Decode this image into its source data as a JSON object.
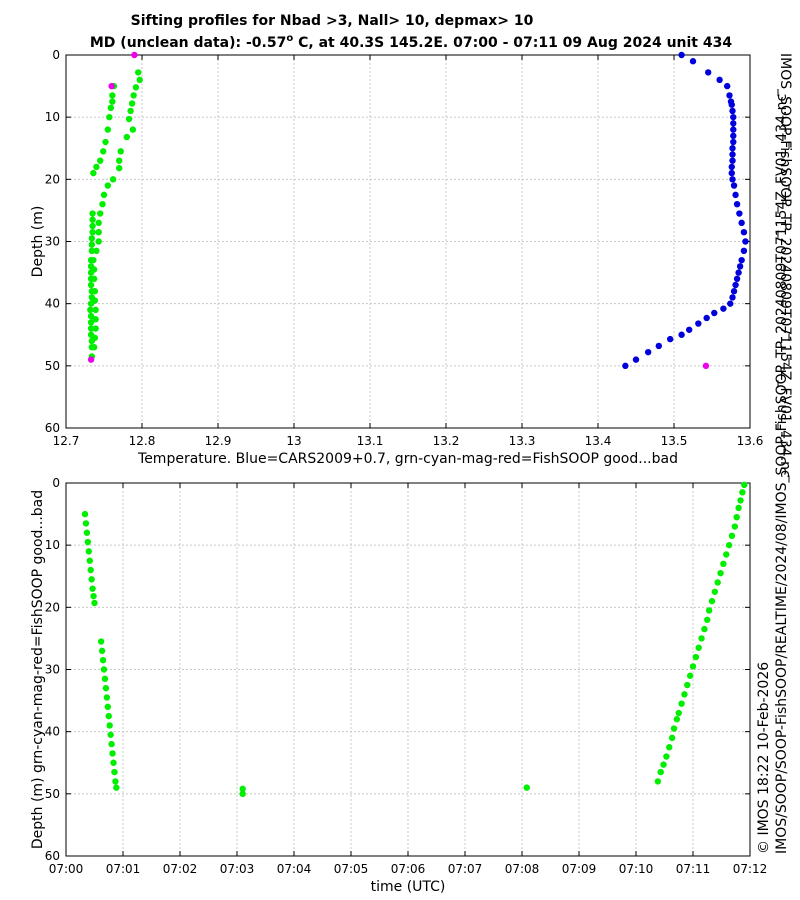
{
  "title_line1": "Sifting profiles for Nbad >3, Nall> 10, depmax> 10",
  "title_line2_prefix": "MD (unclean data): -0.57",
  "title_line2_sup": "o",
  "title_line2_suffix": " C, at 40.3S 145.2E. 07:00 - 07:11 09 Aug 2024 unit 434",
  "side_text_right": "IMOS_SOOP-FishSOOP_TP_20240809T071154Z_FV01_434.nc",
  "side_text_bottom_1": "© IMOS 18:22 10-Feb-2026",
  "side_text_bottom_2": "IMOS/SOOP/SOOP-FishSOOP/REALTIME/2024/08/IMOS_SOOP-FishSOOP_TP_20240809T071154Z_FV01_434.nc",
  "colors": {
    "green": "#00ee00",
    "blue": "#0000dd",
    "magenta": "#ee00ee",
    "grid": "#c8c8c8"
  },
  "chart_data": [
    {
      "type": "scatter",
      "xlabel": "Temperature. Blue=CARS2009+0.7, grn-cyan-mag-red=FishSOOP good...bad",
      "ylabel": "Depth (m)",
      "xlim": [
        12.7,
        13.6
      ],
      "ylim": [
        60,
        0
      ],
      "y_inverted": true,
      "grid": true,
      "xticks": [
        "12.7",
        "12.8",
        "12.9",
        "13",
        "13.1",
        "13.2",
        "13.3",
        "13.4",
        "13.5",
        "13.6"
      ],
      "yticks": [
        "0",
        "10",
        "20",
        "30",
        "40",
        "50",
        "60"
      ],
      "series": [
        {
          "color": "#0000dd",
          "points": [
            [
              13.51,
              0
            ],
            [
              13.525,
              1
            ],
            [
              13.545,
              2.8
            ],
            [
              13.56,
              4
            ],
            [
              13.57,
              5
            ],
            [
              13.573,
              6.5
            ],
            [
              13.575,
              7.5
            ],
            [
              13.576,
              8
            ],
            [
              13.577,
              9
            ],
            [
              13.578,
              10
            ],
            [
              13.578,
              11
            ],
            [
              13.578,
              12
            ],
            [
              13.578,
              13
            ],
            [
              13.578,
              14
            ],
            [
              13.577,
              15
            ],
            [
              13.577,
              16
            ],
            [
              13.577,
              17
            ],
            [
              13.576,
              18
            ],
            [
              13.576,
              19
            ],
            [
              13.577,
              20
            ],
            [
              13.579,
              21
            ],
            [
              13.581,
              22.5
            ],
            [
              13.583,
              24
            ],
            [
              13.586,
              25.5
            ],
            [
              13.589,
              27
            ],
            [
              13.592,
              28.5
            ],
            [
              13.594,
              30
            ],
            [
              13.592,
              31.5
            ],
            [
              13.589,
              33
            ],
            [
              13.587,
              34
            ],
            [
              13.585,
              35
            ],
            [
              13.583,
              36
            ],
            [
              13.581,
              37
            ],
            [
              13.579,
              38
            ],
            [
              13.577,
              39
            ],
            [
              13.574,
              40
            ],
            [
              13.565,
              40.8
            ],
            [
              13.553,
              41.5
            ],
            [
              13.543,
              42.3
            ],
            [
              13.532,
              43.2
            ],
            [
              13.52,
              44.2
            ],
            [
              13.51,
              45
            ],
            [
              13.495,
              45.7
            ],
            [
              13.48,
              46.8
            ],
            [
              13.466,
              47.8
            ],
            [
              13.45,
              49
            ],
            [
              13.436,
              50
            ]
          ]
        },
        {
          "color": "#00ee00",
          "points": [
            [
              12.795,
              2.8
            ],
            [
              12.797,
              4
            ],
            [
              12.792,
              5.2
            ],
            [
              12.789,
              6.5
            ],
            [
              12.787,
              7.8
            ],
            [
              12.785,
              9
            ],
            [
              12.783,
              10.3
            ],
            [
              12.788,
              12
            ],
            [
              12.78,
              13.2
            ],
            [
              12.772,
              15.5
            ],
            [
              12.77,
              17
            ],
            [
              12.77,
              18.2
            ],
            [
              12.762,
              20
            ],
            [
              12.755,
              21
            ],
            [
              12.75,
              22.5
            ],
            [
              12.748,
              24
            ],
            [
              12.745,
              25.5
            ],
            [
              12.743,
              27
            ],
            [
              12.743,
              28.5
            ],
            [
              12.743,
              30
            ],
            [
              12.74,
              31.5
            ],
            [
              12.763,
              5
            ],
            [
              12.761,
              6.5
            ],
            [
              12.761,
              7.5
            ],
            [
              12.759,
              8.5
            ],
            [
              12.757,
              10
            ],
            [
              12.755,
              12
            ],
            [
              12.752,
              14
            ],
            [
              12.749,
              15.5
            ],
            [
              12.745,
              17
            ],
            [
              12.74,
              18
            ],
            [
              12.736,
              19
            ],
            [
              12.735,
              25.5
            ],
            [
              12.735,
              26.5
            ],
            [
              12.735,
              27.5
            ],
            [
              12.735,
              28.5
            ],
            [
              12.734,
              29.5
            ],
            [
              12.734,
              30.5
            ],
            [
              12.734,
              31.5
            ],
            [
              12.733,
              33
            ],
            [
              12.733,
              34
            ],
            [
              12.733,
              35
            ],
            [
              12.733,
              36
            ],
            [
              12.733,
              37
            ],
            [
              12.734,
              38
            ],
            [
              12.734,
              39
            ],
            [
              12.733,
              40
            ],
            [
              12.732,
              41
            ],
            [
              12.733,
              42
            ],
            [
              12.733,
              43
            ],
            [
              12.733,
              44
            ],
            [
              12.733,
              45
            ],
            [
              12.734,
              46
            ],
            [
              12.734,
              47
            ],
            [
              12.734,
              48.5
            ],
            [
              12.736,
              33
            ],
            [
              12.737,
              34.5
            ],
            [
              12.737,
              36
            ],
            [
              12.738,
              38
            ],
            [
              12.738,
              39.5
            ],
            [
              12.739,
              41
            ],
            [
              12.739,
              42.5
            ],
            [
              12.739,
              44
            ],
            [
              12.738,
              45.5
            ],
            [
              12.737,
              47
            ]
          ]
        },
        {
          "color": "#ee00ee",
          "points": [
            [
              12.79,
              0
            ],
            [
              12.76,
              5
            ],
            [
              12.733,
              49
            ],
            [
              13.542,
              50
            ]
          ]
        }
      ]
    },
    {
      "type": "scatter",
      "xlabel": "time (UTC)",
      "ylabel": "Depth (m) grn-cyan-mag-red=FishSOOP good...bad",
      "xlim": [
        "07:00",
        "07:12"
      ],
      "ylim": [
        60,
        0
      ],
      "y_inverted": true,
      "grid": true,
      "xticks": [
        "07:00",
        "07:01",
        "07:02",
        "07:03",
        "07:04",
        "07:05",
        "07:06",
        "07:07",
        "07:08",
        "07:09",
        "07:10",
        "07:11",
        "07:12"
      ],
      "yticks": [
        "0",
        "10",
        "20",
        "30",
        "40",
        "50",
        "60"
      ],
      "series": [
        {
          "color": "#00ee00",
          "points": [
            [
              "07:00:20",
              5
            ],
            [
              "07:00:21",
              6.5
            ],
            [
              "07:00:22",
              8
            ],
            [
              "07:00:23",
              9.5
            ],
            [
              "07:00:24",
              11
            ],
            [
              "07:00:25",
              12.5
            ],
            [
              "07:00:26",
              14
            ],
            [
              "07:00:27",
              15.5
            ],
            [
              "07:00:28",
              17
            ],
            [
              "07:00:29",
              18.2
            ],
            [
              "07:00:30",
              19.3
            ],
            [
              "07:00:37",
              25.5
            ],
            [
              "07:00:38",
              27
            ],
            [
              "07:00:39",
              28.5
            ],
            [
              "07:00:40",
              30
            ],
            [
              "07:00:41",
              31.5
            ],
            [
              "07:00:42",
              33
            ],
            [
              "07:00:43",
              34.5
            ],
            [
              "07:00:44",
              36
            ],
            [
              "07:00:45",
              37.5
            ],
            [
              "07:00:46",
              39
            ],
            [
              "07:00:47",
              40.5
            ],
            [
              "07:00:48",
              42
            ],
            [
              "07:00:49",
              43.5
            ],
            [
              "07:00:50",
              45
            ],
            [
              "07:00:51",
              46.5
            ],
            [
              "07:00:52",
              48
            ],
            [
              "07:00:53",
              49
            ],
            [
              "07:03:06",
              49.2
            ],
            [
              "07:03:06",
              50
            ],
            [
              "07:08:05",
              49
            ],
            [
              "07:10:23",
              48
            ],
            [
              "07:10:26",
              46.5
            ],
            [
              "07:10:29",
              45.3
            ],
            [
              "07:10:32",
              44
            ],
            [
              "07:10:35",
              42.5
            ],
            [
              "07:10:38",
              41
            ],
            [
              "07:10:40",
              39.5
            ],
            [
              "07:10:43",
              38
            ],
            [
              "07:10:45",
              37
            ],
            [
              "07:10:48",
              35.5
            ],
            [
              "07:10:51",
              34
            ],
            [
              "07:10:54",
              32.5
            ],
            [
              "07:10:57",
              31
            ],
            [
              "07:11:00",
              29.5
            ],
            [
              "07:11:03",
              28
            ],
            [
              "07:11:06",
              26.5
            ],
            [
              "07:11:09",
              25
            ],
            [
              "07:11:12",
              23.5
            ],
            [
              "07:11:15",
              22
            ],
            [
              "07:11:17",
              20.5
            ],
            [
              "07:11:20",
              19
            ],
            [
              "07:11:23",
              17.5
            ],
            [
              "07:11:26",
              16
            ],
            [
              "07:11:29",
              14.5
            ],
            [
              "07:11:32",
              13
            ],
            [
              "07:11:35",
              11.5
            ],
            [
              "07:11:38",
              10
            ],
            [
              "07:11:41",
              8.5
            ],
            [
              "07:11:44",
              7
            ],
            [
              "07:11:46",
              5.5
            ],
            [
              "07:11:48",
              4
            ],
            [
              "07:11:50",
              2.8
            ],
            [
              "07:11:52",
              1.5
            ],
            [
              "07:11:54",
              0.3
            ]
          ]
        }
      ]
    }
  ]
}
